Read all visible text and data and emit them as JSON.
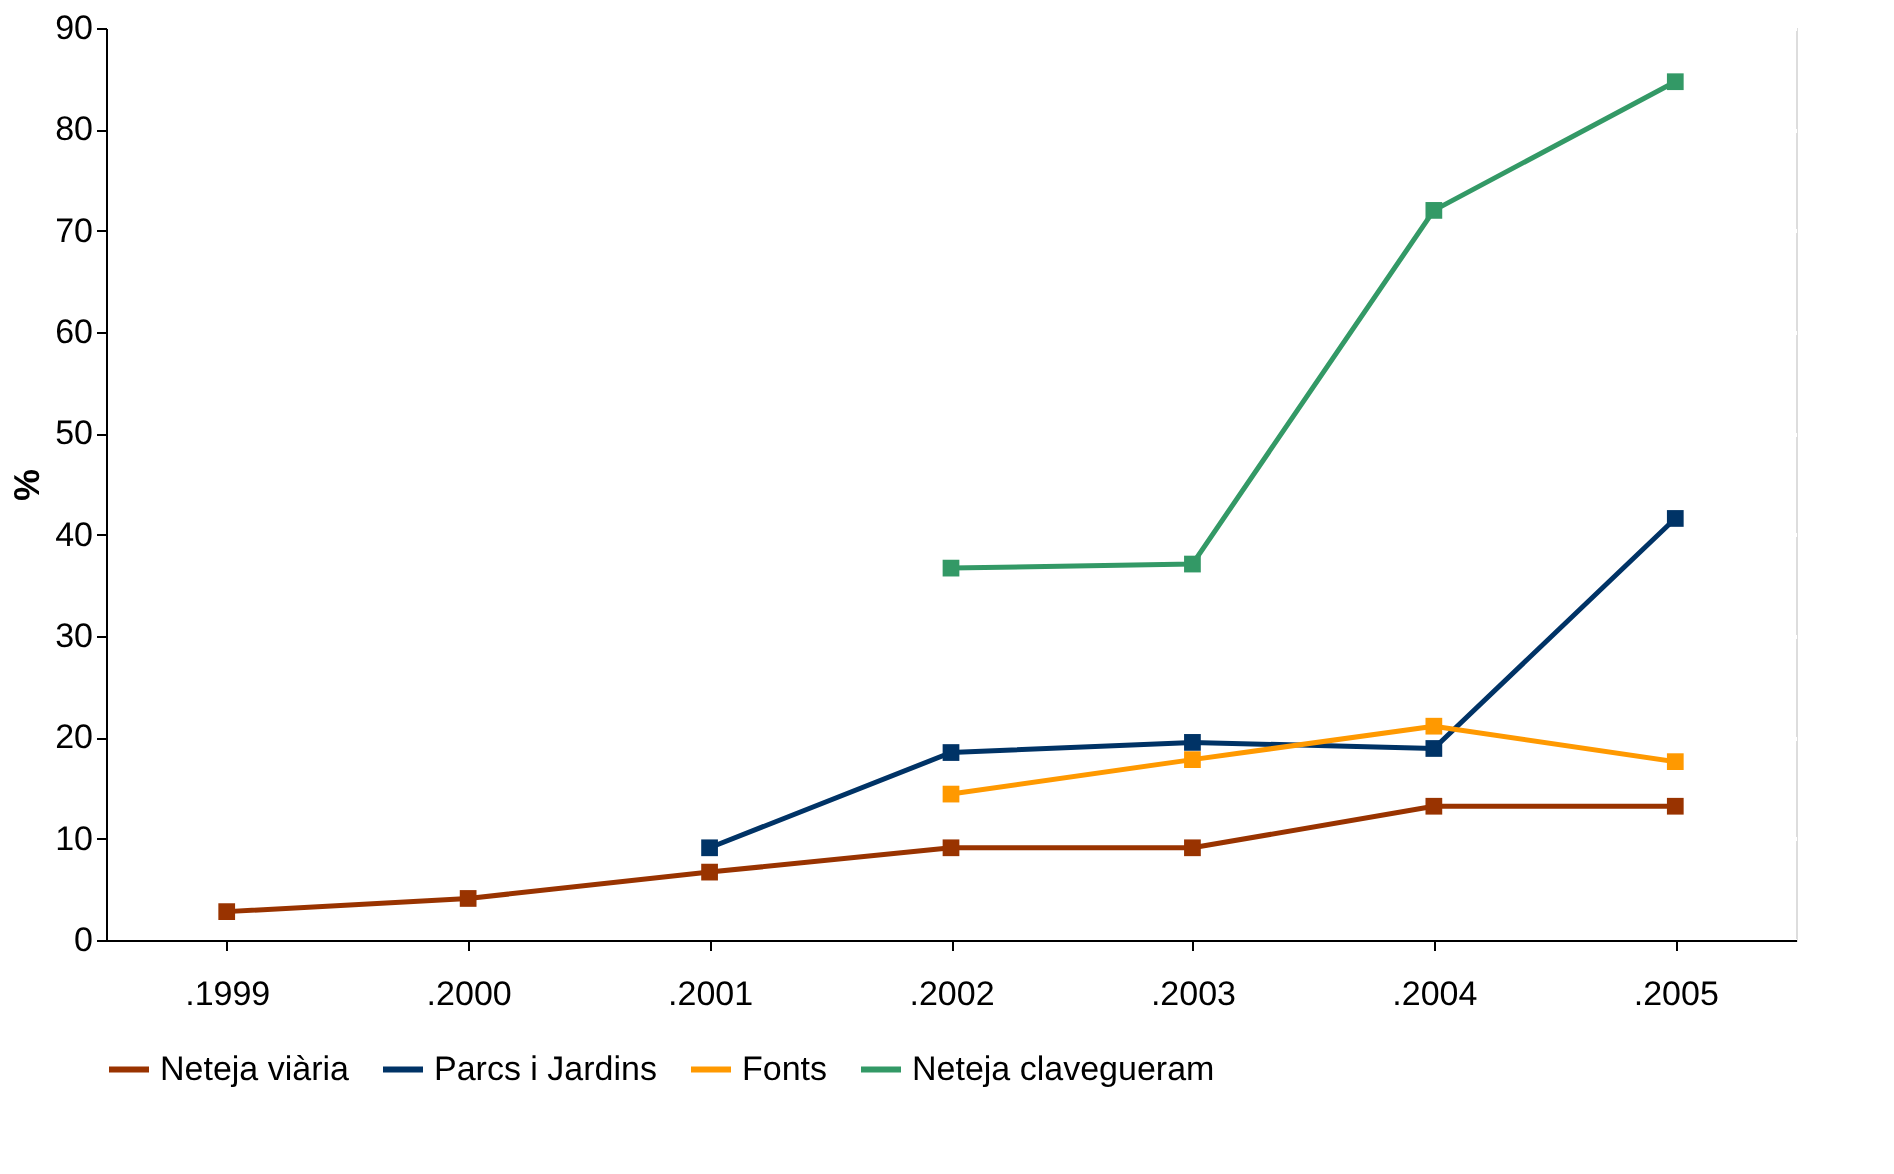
{
  "chart_data": {
    "type": "line",
    "ylabel": "%",
    "categories": [
      ".1999",
      ".2000",
      ".2001",
      ".2002",
      ".2003",
      ".2004",
      ".2005"
    ],
    "series": [
      {
        "name": "Neteja viària",
        "color": "#993300",
        "values": [
          2.8,
          4.1,
          6.7,
          9.1,
          9.1,
          13.2,
          13.2
        ]
      },
      {
        "name": "Parcs i Jardins",
        "color": "#003366",
        "values": [
          null,
          null,
          9.1,
          18.5,
          19.5,
          18.9,
          41.6
        ]
      },
      {
        "name": "Fonts",
        "color": "#ff9900",
        "values": [
          null,
          null,
          null,
          14.4,
          17.8,
          21.1,
          17.6
        ]
      },
      {
        "name": "Neteja clavegueram",
        "color": "#339966",
        "values": [
          null,
          null,
          null,
          36.7,
          37.1,
          72.0,
          84.7
        ]
      }
    ],
    "ylim": [
      0,
      90
    ],
    "yticks": [
      0,
      10,
      20,
      30,
      40,
      50,
      60,
      70,
      80,
      90
    ],
    "grid": "y",
    "legend": "bottom",
    "marker": "square",
    "line_style": "solid"
  }
}
